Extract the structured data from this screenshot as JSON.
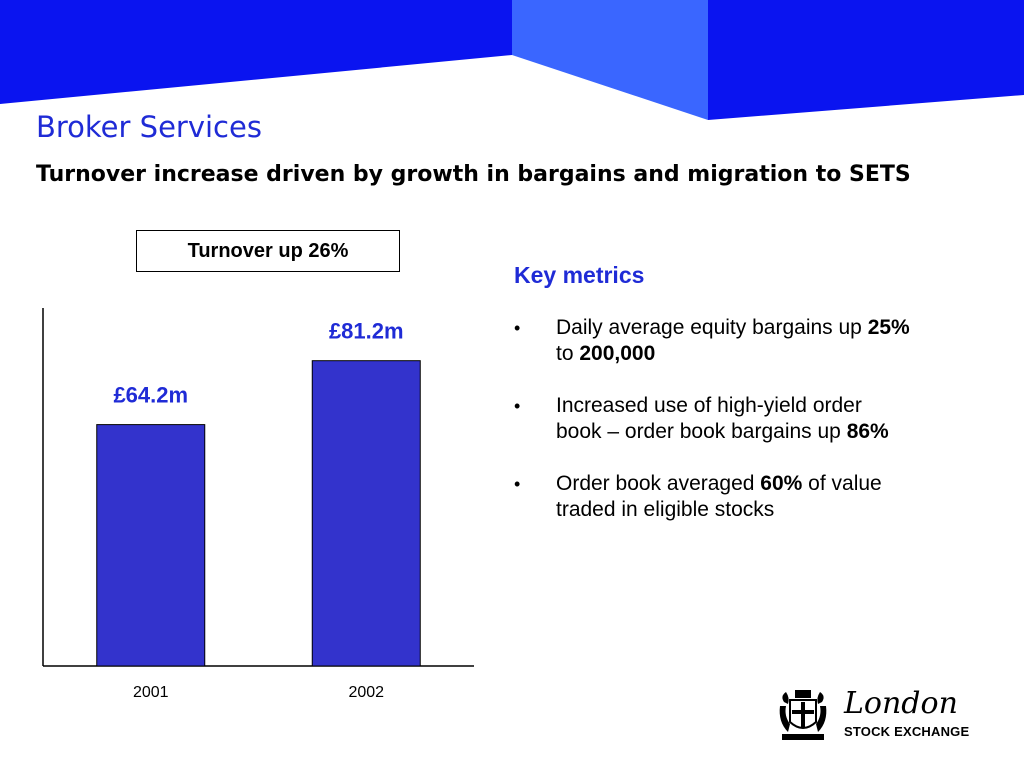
{
  "slide": {
    "title": "Broker Services",
    "subtitle": "Turnover increase driven by growth in bargains and migration to SETS"
  },
  "callout": "Turnover up 26%",
  "chart_data": {
    "type": "bar",
    "categories": [
      "2001",
      "2002"
    ],
    "values": [
      64.2,
      81.2
    ],
    "data_labels": [
      "£64.2m",
      "£81.2m"
    ],
    "ylim": [
      0,
      100
    ],
    "bar_color": "#3333cc",
    "label_color": "#1f2bd6",
    "grid": false
  },
  "metrics": {
    "heading": "Key metrics",
    "bullet_glyph": "•",
    "items": [
      {
        "parts": [
          {
            "text": "Daily average equity bargains up ",
            "bold": false
          },
          {
            "text": "25%",
            "bold": true
          }
        ],
        "line2": [
          {
            "text": "to ",
            "bold": false
          },
          {
            "text": "200,000",
            "bold": true
          }
        ]
      },
      {
        "parts": [
          {
            "text": "Increased use of high-yield order",
            "bold": false
          }
        ],
        "line2": [
          {
            "text": "book – order book bargains up ",
            "bold": false
          },
          {
            "text": "86%",
            "bold": true
          }
        ]
      },
      {
        "parts": [
          {
            "text": "Order book averaged ",
            "bold": false
          },
          {
            "text": "60%",
            "bold": true
          },
          {
            "text": " of value",
            "bold": false
          }
        ],
        "line2": [
          {
            "text": "traded in eligible stocks",
            "bold": false
          }
        ]
      }
    ]
  },
  "logo": {
    "name": "London",
    "sub": "STOCK EXCHANGE"
  },
  "colors": {
    "banner_primary": "#0a14f0",
    "banner_accent": "#3a66ff",
    "title": "#1f2bd6"
  }
}
